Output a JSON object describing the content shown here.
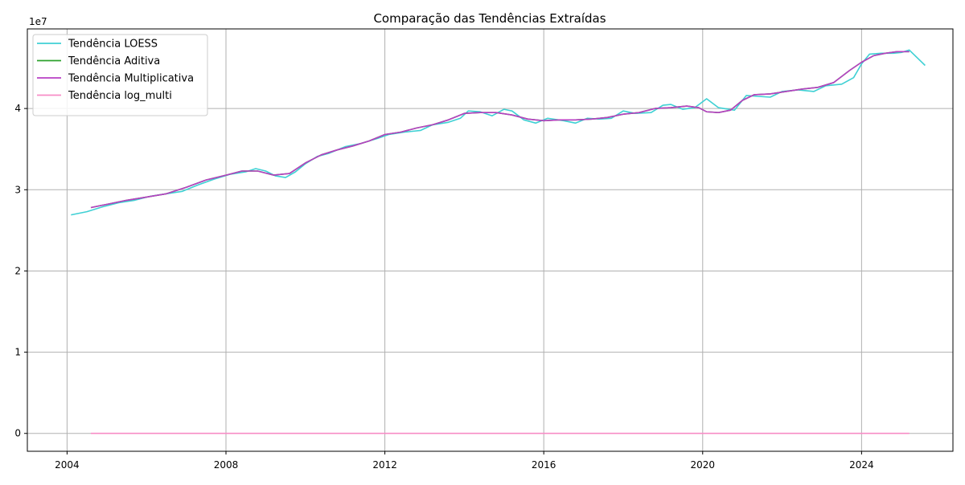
{
  "chart_data": {
    "type": "line",
    "title": "Comparação das Tendências Extraídas",
    "xlabel": "",
    "ylabel": "",
    "y_offset_label": "1e7",
    "x_ticks": [
      "2004",
      "2008",
      "2012",
      "2016",
      "2020",
      "2024"
    ],
    "y_ticks": [
      "0",
      "1",
      "2",
      "3",
      "4"
    ],
    "xlim": [
      2003.0,
      2026.3
    ],
    "ylim": [
      -2200000,
      49800000
    ],
    "grid": true,
    "legend_position": "upper-left",
    "series": [
      {
        "name": "Tendência LOESS",
        "color": "#3fd0d4",
        "x": [
          2004.1,
          2004.5,
          2004.9,
          2005.3,
          2005.7,
          2006.1,
          2006.5,
          2006.9,
          2007.3,
          2007.7,
          2008.1,
          2008.5,
          2008.75,
          2009.0,
          2009.25,
          2009.5,
          2009.75,
          2010.0,
          2010.3,
          2010.6,
          2011.0,
          2011.4,
          2011.8,
          2012.1,
          2012.5,
          2012.9,
          2013.2,
          2013.6,
          2013.9,
          2014.1,
          2014.4,
          2014.7,
          2015.0,
          2015.2,
          2015.5,
          2015.8,
          2016.1,
          2016.5,
          2016.8,
          2017.1,
          2017.4,
          2017.7,
          2018.0,
          2018.3,
          2018.7,
          2019.0,
          2019.2,
          2019.5,
          2019.8,
          2020.1,
          2020.4,
          2020.8,
          2021.1,
          2021.4,
          2021.7,
          2022.0,
          2022.4,
          2022.8,
          2023.1,
          2023.5,
          2023.8,
          2024.0,
          2024.2,
          2024.5,
          2024.8,
          2025.0,
          2025.2,
          2025.6
        ],
        "y": [
          26900000,
          27300000,
          27900000,
          28400000,
          28700000,
          29200000,
          29500000,
          29800000,
          30600000,
          31300000,
          31900000,
          32200000,
          32600000,
          32300000,
          31700000,
          31500000,
          32200000,
          33200000,
          34100000,
          34500000,
          35300000,
          35700000,
          36300000,
          36800000,
          37100000,
          37300000,
          38000000,
          38300000,
          38800000,
          39700000,
          39600000,
          39100000,
          39900000,
          39700000,
          38600000,
          38200000,
          38800000,
          38500000,
          38200000,
          38800000,
          38700000,
          38800000,
          39700000,
          39400000,
          39500000,
          40400000,
          40500000,
          39900000,
          40100000,
          41200000,
          40100000,
          39800000,
          41600000,
          41500000,
          41400000,
          42100000,
          42300000,
          42100000,
          42800000,
          43000000,
          43800000,
          45500000,
          46700000,
          46800000,
          46800000,
          46900000,
          47200000,
          45300000
        ]
      },
      {
        "name": "Tendência Aditiva",
        "color": "#2ca02c",
        "x": [
          2004.6,
          2005.0,
          2005.5,
          2006.0,
          2006.5,
          2007.0,
          2007.5,
          2008.0,
          2008.4,
          2008.8,
          2009.2,
          2009.6,
          2010.0,
          2010.4,
          2010.8,
          2011.2,
          2011.6,
          2012.0,
          2012.4,
          2012.8,
          2013.2,
          2013.6,
          2014.0,
          2014.4,
          2014.8,
          2015.2,
          2015.6,
          2016.0,
          2016.4,
          2016.8,
          2017.2,
          2017.6,
          2018.0,
          2018.4,
          2018.8,
          2019.2,
          2019.6,
          2019.9,
          2020.1,
          2020.4,
          2020.7,
          2021.0,
          2021.3,
          2021.7,
          2022.1,
          2022.5,
          2022.9,
          2023.3,
          2023.7,
          2024.0,
          2024.3,
          2024.6,
          2024.9,
          2025.2
        ],
        "y": [
          27800000,
          28200000,
          28700000,
          29100000,
          29500000,
          30300000,
          31200000,
          31800000,
          32300000,
          32300000,
          31800000,
          32000000,
          33300000,
          34300000,
          34900000,
          35400000,
          36000000,
          36800000,
          37100000,
          37600000,
          38000000,
          38600000,
          39400000,
          39500000,
          39500000,
          39200000,
          38700000,
          38500000,
          38600000,
          38600000,
          38700000,
          38900000,
          39300000,
          39500000,
          40000000,
          40100000,
          40300000,
          40100000,
          39600000,
          39500000,
          39800000,
          41000000,
          41700000,
          41800000,
          42100000,
          42400000,
          42600000,
          43200000,
          44700000,
          45700000,
          46500000,
          46800000,
          47000000,
          47000000
        ]
      },
      {
        "name": "Tendência Multiplicativa",
        "color": "#b83fc4",
        "x": [
          2004.6,
          2005.0,
          2005.5,
          2006.0,
          2006.5,
          2007.0,
          2007.5,
          2008.0,
          2008.4,
          2008.8,
          2009.2,
          2009.6,
          2010.0,
          2010.4,
          2010.8,
          2011.2,
          2011.6,
          2012.0,
          2012.4,
          2012.8,
          2013.2,
          2013.6,
          2014.0,
          2014.4,
          2014.8,
          2015.2,
          2015.6,
          2016.0,
          2016.4,
          2016.8,
          2017.2,
          2017.6,
          2018.0,
          2018.4,
          2018.8,
          2019.2,
          2019.6,
          2019.9,
          2020.1,
          2020.4,
          2020.7,
          2021.0,
          2021.3,
          2021.7,
          2022.1,
          2022.5,
          2022.9,
          2023.3,
          2023.7,
          2024.0,
          2024.3,
          2024.6,
          2024.9,
          2025.2
        ],
        "y": [
          27800000,
          28200000,
          28700000,
          29100000,
          29500000,
          30300000,
          31200000,
          31800000,
          32300000,
          32300000,
          31800000,
          32000000,
          33300000,
          34300000,
          34900000,
          35400000,
          36000000,
          36800000,
          37100000,
          37600000,
          38000000,
          38600000,
          39400000,
          39500000,
          39500000,
          39200000,
          38700000,
          38500000,
          38600000,
          38600000,
          38700000,
          38900000,
          39300000,
          39500000,
          40000000,
          40100000,
          40300000,
          40100000,
          39600000,
          39500000,
          39800000,
          41000000,
          41700000,
          41800000,
          42100000,
          42400000,
          42600000,
          43200000,
          44700000,
          45700000,
          46500000,
          46800000,
          47000000,
          47000000
        ]
      },
      {
        "name": "Tendência log_multi",
        "color": "#f78cc6",
        "x": [
          2004.6,
          2025.2
        ],
        "y": [
          17,
          17
        ]
      }
    ]
  }
}
